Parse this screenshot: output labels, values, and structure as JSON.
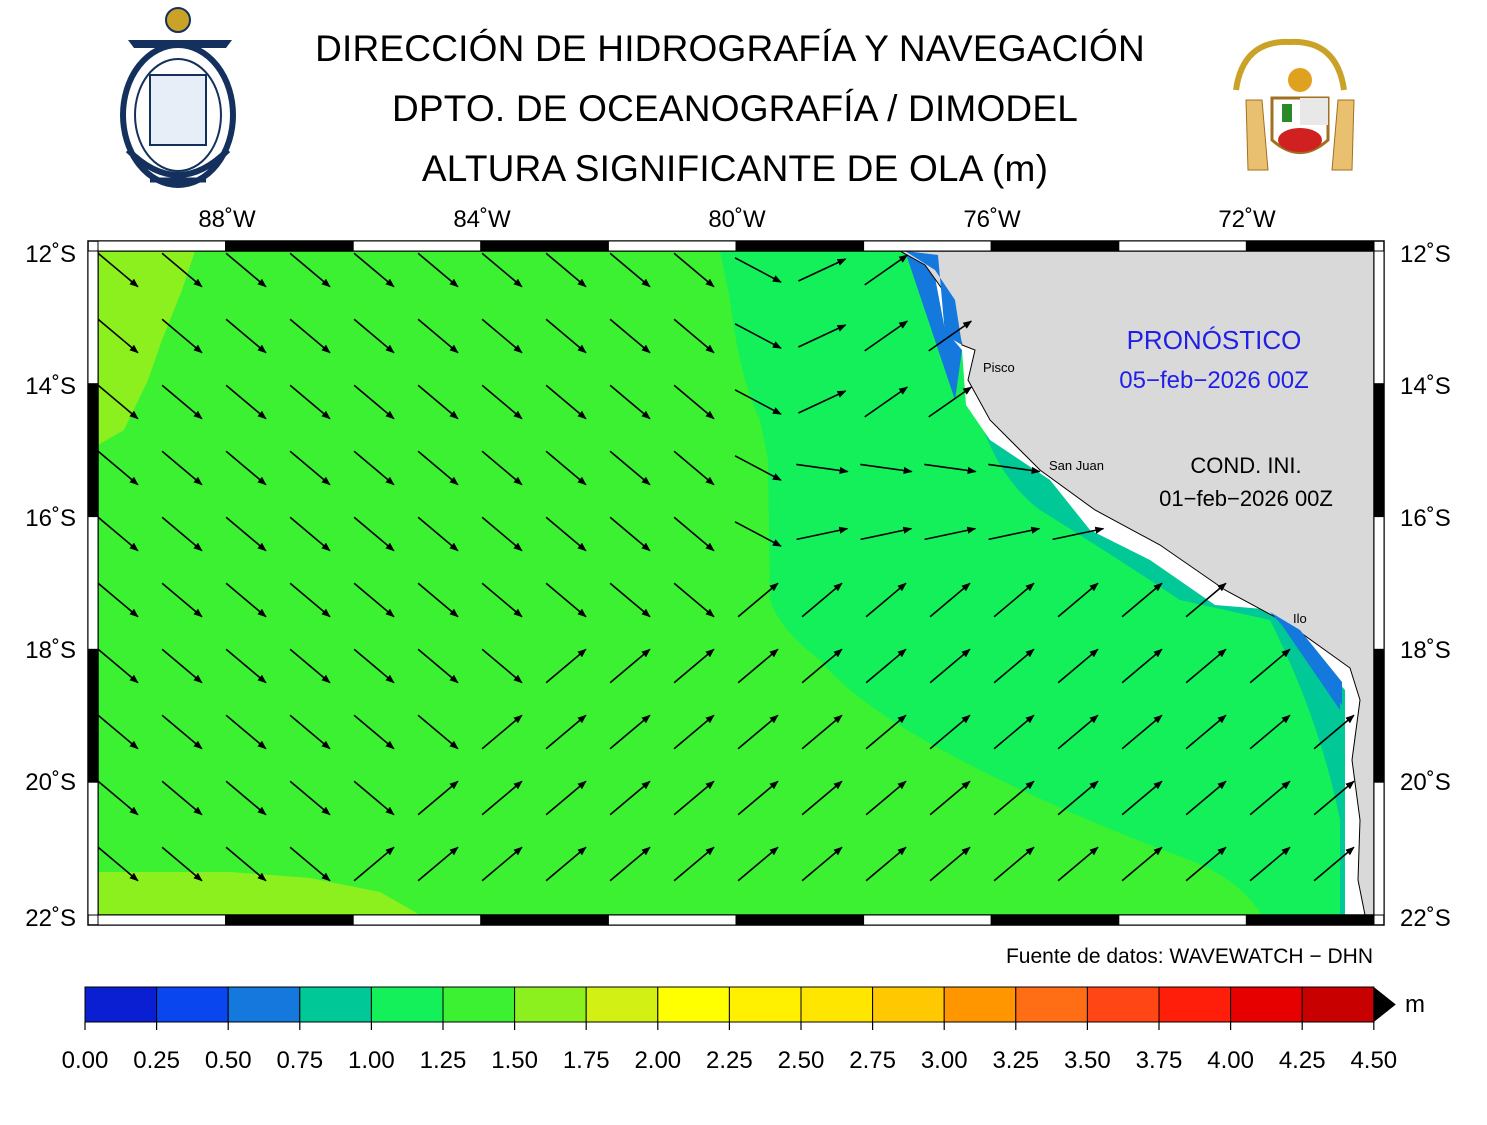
{
  "header": {
    "title_line1": "DIRECCIÓN DE HIDROGRAFÍA Y NAVEGACIÓN",
    "title_line2": "DPTO. DE OCEANOGRAFÍA / DIMODEL",
    "title_line3": "ALTURA SIGNIFICANTE DE OLA (m)"
  },
  "map": {
    "lon_range": [
      -91,
      -71
    ],
    "lat_range": [
      -22,
      -12
    ],
    "lon_ticks": [
      "88˚W",
      "84˚W",
      "80˚W",
      "76˚W",
      "72˚W"
    ],
    "lat_ticks": [
      "12˚S",
      "14˚S",
      "16˚S",
      "18˚S",
      "20˚S",
      "22˚S"
    ],
    "places": [
      "Pisco",
      "San Juan",
      "Ilo"
    ],
    "forecast_label": "PRONÓSTICO",
    "forecast_date": "05−feb−2026 00Z",
    "init_label": "COND. INI.",
    "init_date": "01−feb−2026 00Z",
    "land_color": "#d9d9d9",
    "forecast_color": "#1f1fe8"
  },
  "source_note": "Fuente de datos: WAVEWATCH − DHN",
  "colorbar": {
    "unit": "m",
    "ticks": [
      "0.00",
      "0.25",
      "0.50",
      "0.75",
      "1.00",
      "1.25",
      "1.50",
      "1.75",
      "2.00",
      "2.25",
      "2.50",
      "2.75",
      "3.00",
      "3.25",
      "3.50",
      "3.75",
      "4.00",
      "4.25",
      "4.50"
    ],
    "colors": [
      "#0a1ed2",
      "#0a46f0",
      "#1478dc",
      "#00c896",
      "#14f05a",
      "#3cf032",
      "#8cf01e",
      "#d2f014",
      "#ffff00",
      "#fff000",
      "#ffe600",
      "#ffc800",
      "#ff9600",
      "#ff6e14",
      "#ff4614",
      "#ff1e0a",
      "#e60000",
      "#c80000"
    ]
  }
}
